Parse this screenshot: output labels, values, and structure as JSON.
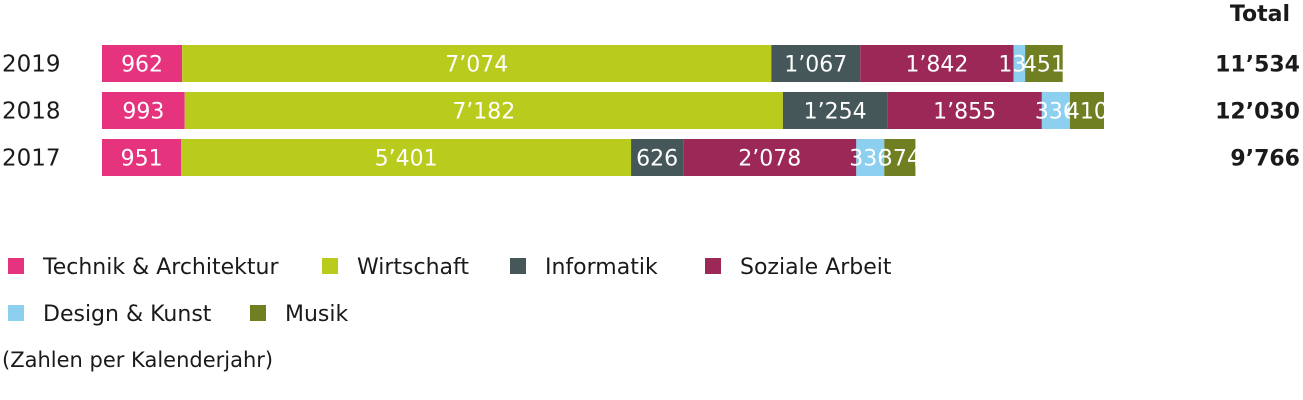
{
  "chart_data": {
    "type": "bar",
    "orientation": "horizontal",
    "stacked": true,
    "total_header": "Total",
    "categories": [
      "2019",
      "2018",
      "2017"
    ],
    "series": [
      {
        "name": "Technik & Architektur",
        "color": "#e5337e",
        "values": [
          962,
          993,
          951
        ],
        "labels": [
          "962",
          "993",
          "951"
        ]
      },
      {
        "name": "Wirtschaft",
        "color": "#b9cc1e",
        "values": [
          7074,
          7182,
          5401
        ],
        "labels": [
          "7’074",
          "7’182",
          "5’401"
        ]
      },
      {
        "name": "Informatik",
        "color": "#455759",
        "values": [
          1067,
          1254,
          626
        ],
        "labels": [
          "1’067",
          "1’254",
          "626"
        ]
      },
      {
        "name": "Soziale Arbeit",
        "color": "#9c2858",
        "values": [
          1842,
          1855,
          2078
        ],
        "labels": [
          "1’842",
          "1’855",
          "2’078"
        ]
      },
      {
        "name": "Design & Kunst",
        "color": "#8ccfef",
        "values": [
          138,
          336,
          336
        ],
        "labels": [
          "138",
          "336",
          "336"
        ]
      },
      {
        "name": "Musik",
        "color": "#707f22",
        "values": [
          451,
          410,
          374
        ],
        "labels": [
          "451",
          "410",
          "374"
        ]
      }
    ],
    "totals": [
      11534,
      12030,
      9766
    ],
    "total_labels": [
      "11’534",
      "12’030",
      "9’766"
    ],
    "legend_position": "bottom",
    "footnote": "(Zahlen per Kalenderjahr)"
  }
}
